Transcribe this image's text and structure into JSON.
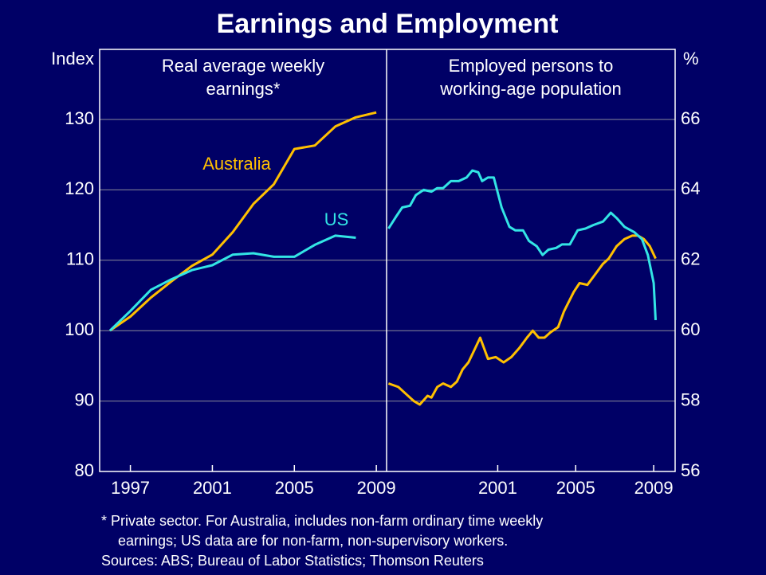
{
  "title": "Earnings and Employment",
  "chart_data": [
    {
      "type": "line",
      "subtitle": [
        "Real average weekly",
        "earnings*"
      ],
      "ylabel": "Index",
      "xlim": [
        1995.5,
        2009.5
      ],
      "xticks": [
        1997,
        2001,
        2005,
        2009
      ],
      "ylim": [
        80,
        140
      ],
      "yticks": [
        80,
        90,
        100,
        110,
        120,
        130
      ],
      "grid": true,
      "series": [
        {
          "name": "Australia",
          "color": "#ffc000",
          "x": [
            1996,
            1997,
            1998,
            1999,
            2000,
            2001,
            2002,
            2003,
            2004,
            2005,
            2006,
            2007,
            2008,
            2009
          ],
          "values": [
            100,
            102,
            104.7,
            107,
            109.2,
            110.8,
            114,
            118,
            120.8,
            125.8,
            126.3,
            129,
            130.3,
            131
          ]
        },
        {
          "name": "US",
          "color": "#33e5e5",
          "x": [
            1996,
            1997,
            1998,
            1999,
            2000,
            2001,
            2002,
            2003,
            2004,
            2005,
            2006,
            2007,
            2008,
            2009
          ],
          "values": [
            100,
            102.8,
            105.8,
            107.3,
            108.6,
            109.3,
            110.8,
            111,
            110.5,
            110.5,
            112.2,
            113.5,
            113.2,
            null
          ]
        }
      ]
    },
    {
      "type": "line",
      "subtitle": [
        "Employed persons to",
        "working-age population"
      ],
      "ylabel": "%",
      "xlim": [
        1995.3,
        2010.1
      ],
      "xticks": [
        2001,
        2005,
        2009
      ],
      "ylim": [
        56,
        68
      ],
      "yticks": [
        56,
        58,
        60,
        62,
        64,
        66
      ],
      "grid": true,
      "series": [
        {
          "color": "#ffc000",
          "x": [
            1995.4,
            1995.9,
            1996.3,
            1996.7,
            1997.0,
            1997.4,
            1997.6,
            1997.9,
            1998.2,
            1998.6,
            1998.9,
            1999.2,
            1999.5,
            1999.8,
            2000.1,
            2000.5,
            2000.9,
            2001.3,
            2001.7,
            2002.1,
            2002.5,
            2002.8,
            2003.1,
            2003.4,
            2003.7,
            2004.1,
            2004.4,
            2004.9,
            2005.2,
            2005.6,
            2006.0,
            2006.4,
            2006.7,
            2007.1,
            2007.5,
            2007.9,
            2008.2,
            2008.5,
            2008.8,
            2009.1
          ],
          "values": [
            58.5,
            58.4,
            58.2,
            58.0,
            57.9,
            58.15,
            58.1,
            58.4,
            58.5,
            58.4,
            58.55,
            58.9,
            59.1,
            59.45,
            59.8,
            59.2,
            59.25,
            59.1,
            59.25,
            59.5,
            59.8,
            60.0,
            59.8,
            59.8,
            59.95,
            60.1,
            60.55,
            61.1,
            61.35,
            61.3,
            61.6,
            61.9,
            62.05,
            62.4,
            62.6,
            62.7,
            62.7,
            62.6,
            62.4,
            62.05
          ]
        },
        {
          "color": "#33e5e5",
          "x": [
            1995.4,
            1995.8,
            1996.1,
            1996.5,
            1996.8,
            1997.2,
            1997.6,
            1997.9,
            1998.2,
            1998.6,
            1999.0,
            1999.4,
            1999.7,
            2000.0,
            2000.2,
            2000.5,
            2000.8,
            2001.2,
            2001.6,
            2001.9,
            2002.3,
            2002.6,
            2003.0,
            2003.3,
            2003.6,
            2004.0,
            2004.3,
            2004.7,
            2005.1,
            2005.5,
            2005.9,
            2006.4,
            2006.8,
            2007.1,
            2007.5,
            2008.0,
            2008.4,
            2008.7,
            2009.0,
            2009.1
          ],
          "values": [
            62.9,
            63.25,
            63.5,
            63.55,
            63.85,
            64.0,
            63.95,
            64.05,
            64.05,
            64.25,
            64.25,
            64.35,
            64.55,
            64.5,
            64.25,
            64.35,
            64.35,
            63.5,
            62.95,
            62.85,
            62.85,
            62.55,
            62.4,
            62.15,
            62.3,
            62.35,
            62.45,
            62.45,
            62.85,
            62.9,
            63.0,
            63.1,
            63.35,
            63.2,
            62.95,
            62.8,
            62.6,
            62.15,
            61.35,
            60.3
          ]
        }
      ]
    }
  ],
  "notes": [
    "*  Private sector. For Australia, includes non-farm ordinary time weekly",
    "earnings; US data are for non-farm, non-supervisory workers.",
    "Sources: ABS; Bureau of Labor Statistics; Thomson Reuters"
  ]
}
